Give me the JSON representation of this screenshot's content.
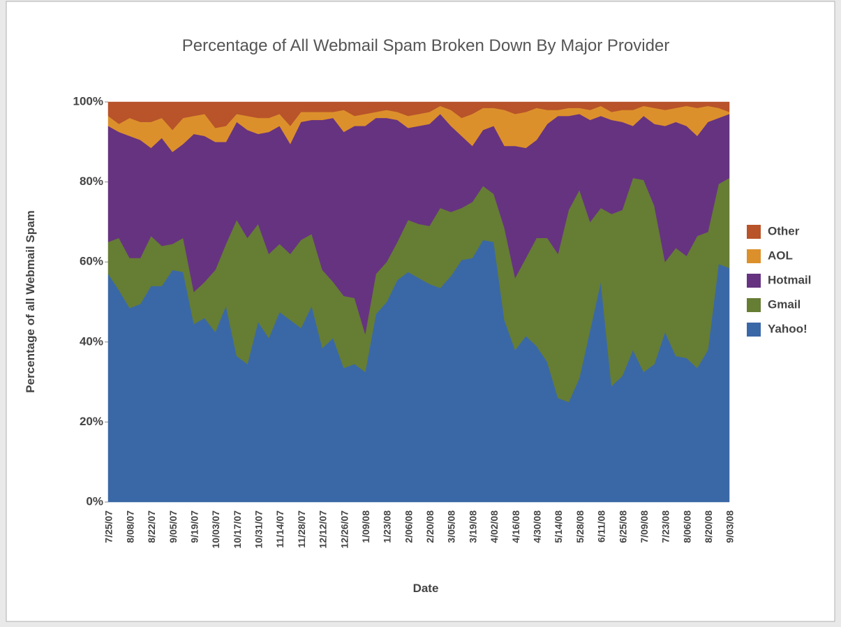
{
  "chart_data": {
    "type": "stacked_area",
    "title": "Percentage of All Webmail Spam Broken Down By Major Provider",
    "x_label": "Date",
    "y_label": "Percentage of all Webmail Spam",
    "categories": [
      "7/25/07",
      null,
      "8/08/07",
      null,
      "8/22/07",
      null,
      "9/05/07",
      null,
      "9/19/07",
      null,
      "10/03/07",
      null,
      "10/17/07",
      null,
      "10/31/07",
      null,
      "11/14/07",
      null,
      "11/28/07",
      null,
      "12/12/07",
      null,
      "12/26/07",
      null,
      "1/09/08",
      null,
      "1/23/08",
      null,
      "2/06/08",
      null,
      "2/20/08",
      null,
      "3/05/08",
      null,
      "3/19/08",
      null,
      "4/02/08",
      null,
      "4/16/08",
      null,
      "4/30/08",
      null,
      "5/14/08",
      null,
      "5/28/08",
      null,
      "6/11/08",
      null,
      "6/25/08",
      null,
      "7/09/08",
      null,
      "7/23/08",
      null,
      "8/06/08",
      null,
      "8/20/08",
      null,
      "9/03/08"
    ],
    "series": [
      {
        "name": "Yahoo!",
        "color": "#3a68a6",
        "values": [
          57,
          53,
          48.5,
          49.5,
          54,
          54,
          58,
          57.5,
          44.5,
          46,
          42.5,
          49,
          36.5,
          34.5,
          45,
          41,
          47.5,
          45.5,
          43.5,
          49,
          38.5,
          41,
          33.5,
          34.5,
          32.5,
          47,
          50,
          55.5,
          57.5,
          56,
          54.5,
          53.5,
          56.5,
          60.5,
          61,
          65.5,
          65,
          45.5,
          38,
          41.5,
          39,
          35,
          26,
          25,
          31,
          43,
          55,
          29,
          31.5,
          38,
          32.5,
          34.5,
          42.5,
          36.5,
          36,
          33.5,
          38,
          59.5,
          58.5
        ]
      },
      {
        "name": "Gmail",
        "color": "#667d34",
        "values": [
          8,
          13,
          12.5,
          11.5,
          12.5,
          10,
          6.5,
          8.5,
          8,
          9,
          15.5,
          15.5,
          34,
          31.5,
          24.5,
          21,
          17,
          16.5,
          22,
          18,
          19.5,
          14,
          18,
          16.5,
          9.5,
          10,
          10,
          9.5,
          13,
          13.5,
          14.5,
          20,
          16,
          13,
          14,
          13.5,
          12,
          23,
          18,
          19.5,
          27,
          31,
          36,
          48,
          47,
          27,
          18.5,
          43,
          41.5,
          43,
          48,
          39.5,
          17.5,
          27,
          25.5,
          33,
          29.5,
          20,
          22.5
        ]
      },
      {
        "name": "Hotmail",
        "color": "#663380",
        "values": [
          29,
          26.5,
          30.5,
          29.5,
          22,
          27,
          23,
          23.5,
          39.5,
          36.5,
          32,
          25.5,
          24.5,
          27,
          22.5,
          30.5,
          29.5,
          27.5,
          29.5,
          28.5,
          37.5,
          41,
          41,
          43,
          52,
          39,
          36,
          30.5,
          23,
          24.5,
          25.5,
          23.5,
          21.5,
          18,
          14,
          14,
          17,
          20.5,
          33,
          27.5,
          24.5,
          28.5,
          34.5,
          23.5,
          19,
          25.5,
          23,
          23.5,
          22,
          13,
          16,
          20.5,
          34,
          31.5,
          32.5,
          25,
          27.5,
          16.5,
          16
        ]
      },
      {
        "name": "AOL",
        "color": "#dc902b",
        "values": [
          2.5,
          2,
          4.5,
          4.5,
          6.5,
          5,
          5.5,
          6.5,
          4.5,
          5.5,
          3.5,
          4,
          2,
          3.5,
          4,
          3.5,
          3,
          4.5,
          2.5,
          2,
          2,
          1.5,
          5.5,
          2.5,
          3,
          1.5,
          2,
          2,
          3,
          3,
          3,
          2,
          4,
          4.5,
          8,
          5.5,
          4.5,
          9,
          8,
          9,
          8,
          3.5,
          1.5,
          2,
          1.5,
          2.5,
          2.5,
          2,
          3,
          4,
          2.5,
          4,
          4,
          3.5,
          5,
          7,
          4,
          2.5,
          0.5
        ]
      },
      {
        "name": "Other",
        "color": "#b8532a",
        "values": [
          3.5,
          5.5,
          4,
          5,
          5,
          4,
          7,
          4,
          3.5,
          3,
          6.5,
          6,
          3,
          3.5,
          4,
          4,
          3,
          6,
          2.5,
          2.5,
          2.5,
          2.5,
          2,
          3.5,
          3,
          2.5,
          2,
          2.5,
          3.5,
          3,
          2.5,
          1,
          2,
          4,
          3,
          1.5,
          1.5,
          2,
          3,
          2.5,
          1.5,
          2,
          2,
          1.5,
          1.5,
          2,
          1,
          2.5,
          2,
          2,
          1,
          1.5,
          2,
          1.5,
          1,
          1.5,
          1,
          1.5,
          2.5
        ]
      }
    ],
    "ylim": [
      0,
      100
    ],
    "yticks": [
      {
        "value": 0,
        "label": "0%"
      },
      {
        "value": 20,
        "label": "20%"
      },
      {
        "value": 40,
        "label": "40%"
      },
      {
        "value": 60,
        "label": "60%"
      },
      {
        "value": 80,
        "label": "80%"
      },
      {
        "value": 100,
        "label": "100%"
      }
    ],
    "legend": "right",
    "grid": false
  }
}
